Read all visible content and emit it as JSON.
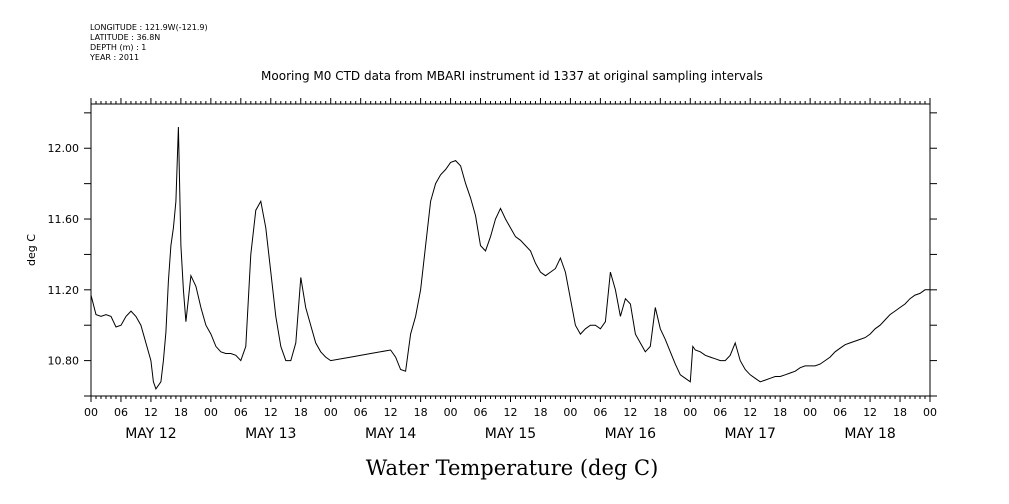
{
  "header": {
    "longitude": "LONGITUDE : 121.9W(-121.9)",
    "latitude": "LATITUDE : 36.8N",
    "depth": "DEPTH (m) : 1",
    "year": "YEAR : 2011"
  },
  "chart_data": {
    "type": "line",
    "title": "Mooring M0 CTD data from MBARI instrument id 1337 at original sampling intervals",
    "xlabel": "Water Temperature (deg C)",
    "ylabel": "deg C",
    "ylim": [
      10.6,
      12.25
    ],
    "y_ticks": [
      "10.80",
      "11.20",
      "11.60",
      "12.00"
    ],
    "x_range_hours": [
      0,
      168
    ],
    "x_hour_ticks": [
      "00",
      "06",
      "12",
      "18",
      "00",
      "06",
      "12",
      "18",
      "00",
      "06",
      "12",
      "18",
      "00",
      "06",
      "12",
      "18",
      "00",
      "06",
      "12",
      "18",
      "00",
      "06",
      "12",
      "18",
      "00",
      "06",
      "12",
      "18",
      "00"
    ],
    "day_labels": [
      "MAY 12",
      "MAY 13",
      "MAY 14",
      "MAY 15",
      "MAY 16",
      "MAY 17",
      "MAY 18"
    ],
    "grid": false,
    "series": [
      {
        "color": "#000000",
        "points": [
          [
            0,
            11.17
          ],
          [
            1,
            11.06
          ],
          [
            2,
            11.05
          ],
          [
            3,
            11.06
          ],
          [
            4,
            11.05
          ],
          [
            5,
            10.99
          ],
          [
            6,
            11.0
          ],
          [
            7,
            11.05
          ],
          [
            8,
            11.08
          ],
          [
            9,
            11.05
          ],
          [
            10,
            11.0
          ],
          [
            11,
            10.9
          ],
          [
            12,
            10.8
          ],
          [
            12.5,
            10.68
          ],
          [
            13,
            10.64
          ],
          [
            14,
            10.68
          ],
          [
            14.5,
            10.8
          ],
          [
            15,
            10.96
          ],
          [
            15.5,
            11.25
          ],
          [
            16,
            11.45
          ],
          [
            16.5,
            11.55
          ],
          [
            17,
            11.7
          ],
          [
            17.5,
            12.12
          ],
          [
            18,
            11.45
          ],
          [
            18.5,
            11.2
          ],
          [
            19,
            11.02
          ],
          [
            20,
            11.28
          ],
          [
            21,
            11.22
          ],
          [
            22,
            11.1
          ],
          [
            23,
            11.0
          ],
          [
            24,
            10.95
          ],
          [
            25,
            10.88
          ],
          [
            26,
            10.85
          ],
          [
            27,
            10.84
          ],
          [
            28,
            10.84
          ],
          [
            29,
            10.83
          ],
          [
            30,
            10.8
          ],
          [
            31,
            10.88
          ],
          [
            32,
            11.4
          ],
          [
            33,
            11.65
          ],
          [
            34,
            11.7
          ],
          [
            35,
            11.55
          ],
          [
            36,
            11.3
          ],
          [
            37,
            11.05
          ],
          [
            38,
            10.88
          ],
          [
            39,
            10.8
          ],
          [
            40,
            10.8
          ],
          [
            41,
            10.9
          ],
          [
            42,
            11.27
          ],
          [
            43,
            11.1
          ],
          [
            44,
            11.0
          ],
          [
            45,
            10.9
          ],
          [
            46,
            10.85
          ],
          [
            47,
            10.82
          ],
          [
            48,
            10.8
          ],
          [
            52,
            10.82
          ],
          [
            56,
            10.84
          ],
          [
            60,
            10.86
          ],
          [
            61,
            10.82
          ],
          [
            62,
            10.75
          ],
          [
            63,
            10.74
          ],
          [
            64,
            10.95
          ],
          [
            65,
            11.05
          ],
          [
            66,
            11.2
          ],
          [
            67,
            11.45
          ],
          [
            68,
            11.7
          ],
          [
            69,
            11.8
          ],
          [
            70,
            11.85
          ],
          [
            71,
            11.88
          ],
          [
            72,
            11.92
          ],
          [
            73,
            11.93
          ],
          [
            74,
            11.9
          ],
          [
            75,
            11.8
          ],
          [
            76,
            11.72
          ],
          [
            77,
            11.62
          ],
          [
            78,
            11.45
          ],
          [
            79,
            11.42
          ],
          [
            80,
            11.5
          ],
          [
            81,
            11.6
          ],
          [
            82,
            11.66
          ],
          [
            83,
            11.6
          ],
          [
            84,
            11.55
          ],
          [
            85,
            11.5
          ],
          [
            86,
            11.48
          ],
          [
            87,
            11.45
          ],
          [
            88,
            11.42
          ],
          [
            89,
            11.35
          ],
          [
            90,
            11.3
          ],
          [
            91,
            11.28
          ],
          [
            92,
            11.3
          ],
          [
            93,
            11.32
          ],
          [
            94,
            11.38
          ],
          [
            95,
            11.3
          ],
          [
            96,
            11.15
          ],
          [
            97,
            11.0
          ],
          [
            98,
            10.95
          ],
          [
            99,
            10.98
          ],
          [
            100,
            11.0
          ],
          [
            101,
            11.0
          ],
          [
            102,
            10.98
          ],
          [
            103,
            11.02
          ],
          [
            104,
            11.3
          ],
          [
            105,
            11.2
          ],
          [
            106,
            11.05
          ],
          [
            107,
            11.15
          ],
          [
            108,
            11.12
          ],
          [
            109,
            10.95
          ],
          [
            110,
            10.9
          ],
          [
            111,
            10.85
          ],
          [
            112,
            10.88
          ],
          [
            113,
            11.1
          ],
          [
            114,
            10.98
          ],
          [
            115,
            10.92
          ],
          [
            116,
            10.85
          ],
          [
            117,
            10.78
          ],
          [
            118,
            10.72
          ],
          [
            119,
            10.7
          ],
          [
            120,
            10.68
          ],
          [
            120.5,
            10.88
          ],
          [
            121,
            10.86
          ],
          [
            122,
            10.85
          ],
          [
            123,
            10.83
          ],
          [
            124,
            10.82
          ],
          [
            125,
            10.81
          ],
          [
            126,
            10.8
          ],
          [
            127,
            10.8
          ],
          [
            128,
            10.83
          ],
          [
            129,
            10.9
          ],
          [
            130,
            10.8
          ],
          [
            131,
            10.75
          ],
          [
            132,
            10.72
          ],
          [
            133,
            10.7
          ],
          [
            134,
            10.68
          ],
          [
            135,
            10.69
          ],
          [
            136,
            10.7
          ],
          [
            137,
            10.71
          ],
          [
            138,
            10.71
          ],
          [
            139,
            10.72
          ],
          [
            140,
            10.73
          ],
          [
            141,
            10.74
          ],
          [
            142,
            10.76
          ],
          [
            143,
            10.77
          ],
          [
            144,
            10.77
          ],
          [
            145,
            10.77
          ],
          [
            146,
            10.78
          ],
          [
            147,
            10.8
          ],
          [
            148,
            10.82
          ],
          [
            149,
            10.85
          ],
          [
            150,
            10.87
          ],
          [
            151,
            10.89
          ],
          [
            152,
            10.9
          ],
          [
            153,
            10.91
          ],
          [
            154,
            10.92
          ],
          [
            155,
            10.93
          ],
          [
            156,
            10.95
          ],
          [
            157,
            10.98
          ],
          [
            158,
            11.0
          ],
          [
            159,
            11.03
          ],
          [
            160,
            11.06
          ],
          [
            161,
            11.08
          ],
          [
            162,
            11.1
          ],
          [
            163,
            11.12
          ],
          [
            164,
            11.15
          ],
          [
            165,
            11.17
          ],
          [
            166,
            11.18
          ],
          [
            167,
            11.2
          ],
          [
            168,
            11.2
          ]
        ]
      }
    ]
  }
}
